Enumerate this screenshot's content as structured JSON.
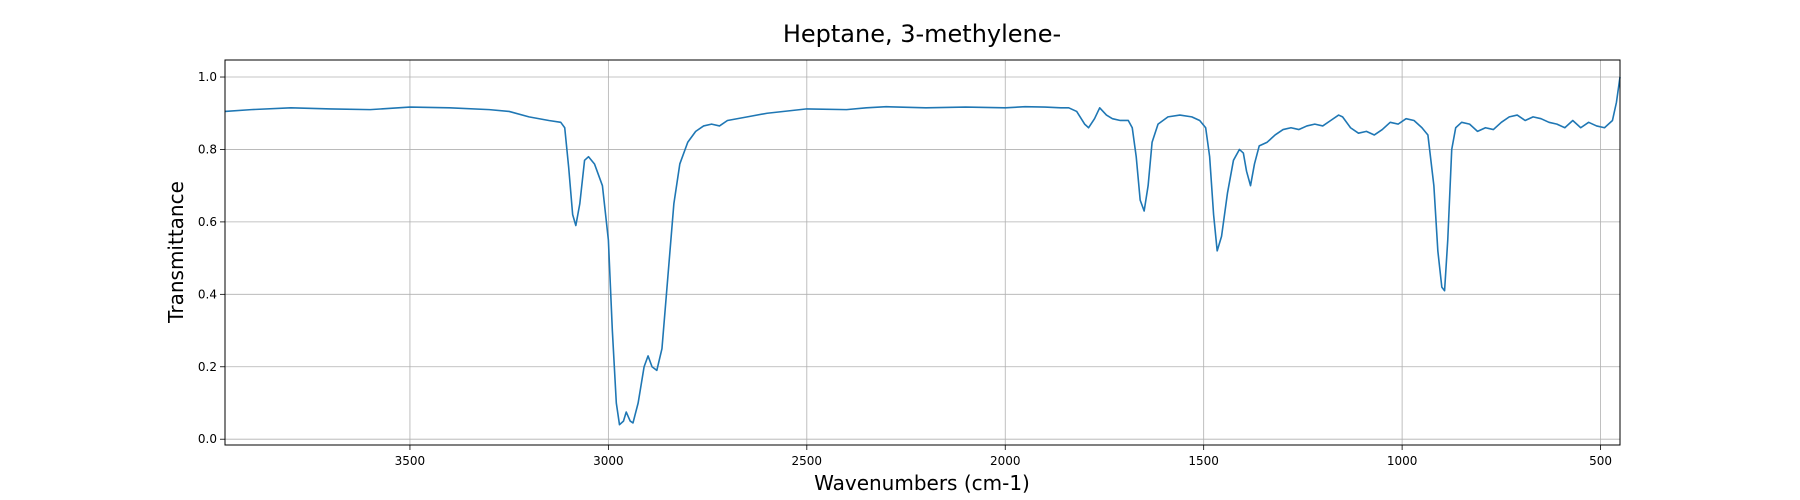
{
  "chart_data": {
    "type": "line",
    "title": "Heptane, 3-methylene-",
    "xlabel": "Wavenumbers (cm-1)",
    "ylabel": "Transmittance",
    "color": "#1f77b4",
    "grid": true,
    "xlim": [
      3966,
      451
    ],
    "ylim": [
      -0.016,
      1.047
    ],
    "xticks": [
      3500,
      3000,
      2500,
      2000,
      1500,
      1000,
      500
    ],
    "yticks": [
      {
        "value": 0,
        "label": "0.0"
      },
      0.2,
      0.4,
      0.6,
      0.8,
      {
        "value": 1,
        "label": "1.0"
      }
    ],
    "x": [
      3966,
      3900,
      3800,
      3700,
      3600,
      3500,
      3400,
      3300,
      3250,
      3200,
      3150,
      3120,
      3110,
      3100,
      3090,
      3082,
      3072,
      3060,
      3050,
      3035,
      3015,
      3000,
      2990,
      2980,
      2972,
      2962,
      2955,
      2945,
      2938,
      2925,
      2910,
      2900,
      2890,
      2878,
      2865,
      2850,
      2835,
      2820,
      2800,
      2780,
      2760,
      2740,
      2720,
      2700,
      2650,
      2600,
      2500,
      2400,
      2350,
      2300,
      2200,
      2100,
      2000,
      1950,
      1900,
      1860,
      1840,
      1820,
      1800,
      1790,
      1775,
      1762,
      1745,
      1730,
      1710,
      1690,
      1680,
      1670,
      1660,
      1650,
      1640,
      1630,
      1615,
      1590,
      1560,
      1530,
      1510,
      1495,
      1485,
      1475,
      1466,
      1455,
      1440,
      1425,
      1410,
      1400,
      1392,
      1382,
      1372,
      1360,
      1340,
      1320,
      1300,
      1280,
      1260,
      1240,
      1220,
      1200,
      1180,
      1160,
      1150,
      1130,
      1110,
      1090,
      1070,
      1050,
      1030,
      1010,
      990,
      970,
      950,
      935,
      920,
      910,
      900,
      893,
      885,
      875,
      865,
      850,
      830,
      810,
      790,
      770,
      750,
      730,
      710,
      690,
      670,
      650,
      630,
      610,
      590,
      570,
      550,
      530,
      510,
      490,
      470,
      460,
      451
    ],
    "y": [
      0.905,
      0.91,
      0.915,
      0.912,
      0.91,
      0.917,
      0.915,
      0.91,
      0.905,
      0.89,
      0.88,
      0.875,
      0.86,
      0.75,
      0.62,
      0.59,
      0.65,
      0.77,
      0.78,
      0.76,
      0.7,
      0.55,
      0.3,
      0.1,
      0.04,
      0.05,
      0.075,
      0.05,
      0.045,
      0.1,
      0.2,
      0.23,
      0.2,
      0.19,
      0.25,
      0.45,
      0.65,
      0.76,
      0.82,
      0.85,
      0.865,
      0.87,
      0.865,
      0.88,
      0.89,
      0.9,
      0.912,
      0.91,
      0.915,
      0.918,
      0.915,
      0.917,
      0.915,
      0.918,
      0.917,
      0.915,
      0.915,
      0.905,
      0.87,
      0.86,
      0.885,
      0.915,
      0.895,
      0.885,
      0.88,
      0.88,
      0.86,
      0.78,
      0.66,
      0.63,
      0.7,
      0.82,
      0.87,
      0.89,
      0.895,
      0.89,
      0.88,
      0.86,
      0.78,
      0.62,
      0.52,
      0.56,
      0.68,
      0.77,
      0.8,
      0.79,
      0.74,
      0.7,
      0.76,
      0.81,
      0.82,
      0.84,
      0.855,
      0.86,
      0.855,
      0.865,
      0.87,
      0.865,
      0.88,
      0.895,
      0.89,
      0.86,
      0.845,
      0.85,
      0.84,
      0.855,
      0.875,
      0.87,
      0.885,
      0.88,
      0.86,
      0.84,
      0.7,
      0.52,
      0.42,
      0.41,
      0.55,
      0.8,
      0.86,
      0.875,
      0.87,
      0.85,
      0.86,
      0.855,
      0.875,
      0.89,
      0.895,
      0.88,
      0.89,
      0.885,
      0.875,
      0.87,
      0.86,
      0.88,
      0.86,
      0.875,
      0.865,
      0.86,
      0.88,
      0.93,
      1.0
    ]
  }
}
